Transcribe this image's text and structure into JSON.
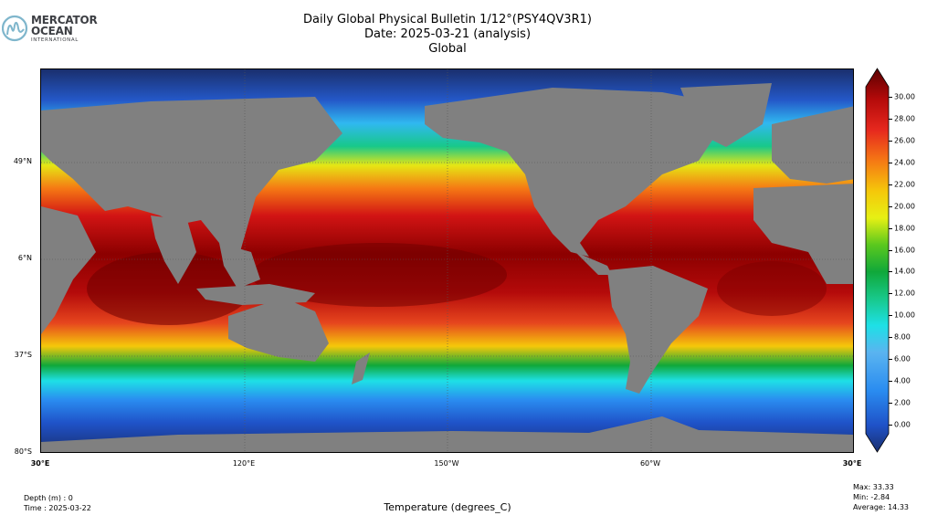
{
  "logo": {
    "line1": "MERCATOR",
    "line2": "OCEAN",
    "line3": "INTERNATIONAL",
    "icon": "mercator-ocean-m-logo"
  },
  "title": {
    "line1": "Daily Global Physical Bulletin 1/12°(PSY4QV3R1)",
    "line2": "Date: 2025-03-21 (analysis)",
    "line3": "Global"
  },
  "map": {
    "variable": "sea surface temperature",
    "land_color": "#808080",
    "lat_labels": [
      "49°N",
      "6°N",
      "37°S",
      "80°S"
    ],
    "lon_labels": [
      "30°E",
      "120°E",
      "150°W",
      "60°W",
      "30°E"
    ]
  },
  "colorbar": {
    "ticks": [
      "30.00",
      "28.00",
      "26.00",
      "24.00",
      "22.00",
      "20.00",
      "18.00",
      "16.00",
      "14.00",
      "12.00",
      "10.00",
      "8.00",
      "6.00",
      "4.00",
      "2.00",
      "0.00"
    ],
    "range": [
      -0.9,
      30.9
    ],
    "colors": [
      "#1a2f6e",
      "#1f52c8",
      "#2a8cf0",
      "#32c8f5",
      "#1ee0e6",
      "#18c88a",
      "#10a83a",
      "#5ac81e",
      "#c8e814",
      "#f5e60a",
      "#f5b40a",
      "#f57814",
      "#e6281e",
      "#c8100f",
      "#8c0000",
      "#5a0000"
    ]
  },
  "footer": {
    "depth": "Depth (m) : 0",
    "time": "Time : 2025-03-22",
    "variable_label": "Temperature (degrees_C)",
    "max": "Max: 33.33",
    "min": "Min: -2.84",
    "average": "Average: 14.33"
  }
}
